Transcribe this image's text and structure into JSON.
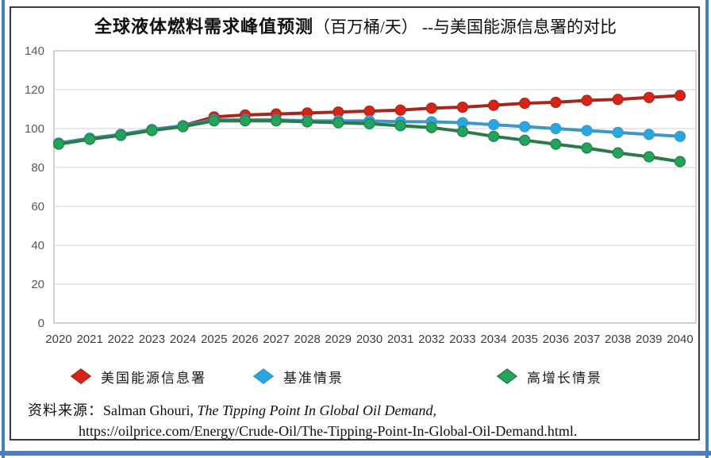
{
  "title": {
    "main": "全球液体燃料需求峰值预测",
    "sub": "（百万桶/天） --与美国能源信息署的对比"
  },
  "chart_data": {
    "type": "line",
    "x": [
      2020,
      2021,
      2022,
      2023,
      2024,
      2025,
      2026,
      2027,
      2028,
      2029,
      2030,
      2031,
      2032,
      2033,
      2034,
      2035,
      2036,
      2037,
      2038,
      2039,
      2040
    ],
    "series": [
      {
        "name": "美国能源信息署",
        "line_color": "#a5281e",
        "marker_color": "#d92314",
        "values": [
          92.5,
          95,
          97,
          99.5,
          101.5,
          106,
          107,
          107.5,
          108,
          108.5,
          109,
          109.5,
          110.5,
          111,
          112,
          113,
          113.5,
          114.5,
          115,
          116,
          117
        ]
      },
      {
        "name": "基准情景",
        "line_color": "#3f97c4",
        "marker_color": "#27a7e1",
        "values": [
          92.5,
          95,
          97,
          99.5,
          101.5,
          104.5,
          104.5,
          104.5,
          104,
          104,
          104,
          103.5,
          103.5,
          103,
          102,
          101,
          100,
          99,
          98,
          97,
          96
        ]
      },
      {
        "name": "高增长情景",
        "line_color": "#2a7a4b",
        "marker_color": "#22a55a",
        "values": [
          92,
          94.5,
          96.5,
          99,
          101,
          104,
          104,
          104,
          103.5,
          103,
          102.5,
          101.5,
          100.5,
          98.5,
          96,
          94,
          92,
          90,
          87.5,
          85.5,
          83
        ]
      }
    ],
    "ylim": [
      0,
      140
    ],
    "y_ticks": [
      0,
      20,
      40,
      60,
      80,
      100,
      120,
      140
    ],
    "grid": "horizontal",
    "legend_position": "bottom",
    "xlabel": "",
    "ylabel": ""
  },
  "colors": {
    "frame_blue": "#4a7ebd",
    "inner_border": "#3b3b3b",
    "gridline": "#d9d9d9",
    "plot_border": "#c3c3c3",
    "y_tick_label": "#595959",
    "x_tick_label": "#3d3d3d"
  },
  "source": {
    "label": "资料来源：",
    "author": "Salman Ghouri, ",
    "work": "The Tipping Point In Global Oil Demand,",
    "url_line": "https://oilprice.com/Energy/Crude-Oil/The-Tipping-Point-In-Global-Oil-Demand.html."
  }
}
